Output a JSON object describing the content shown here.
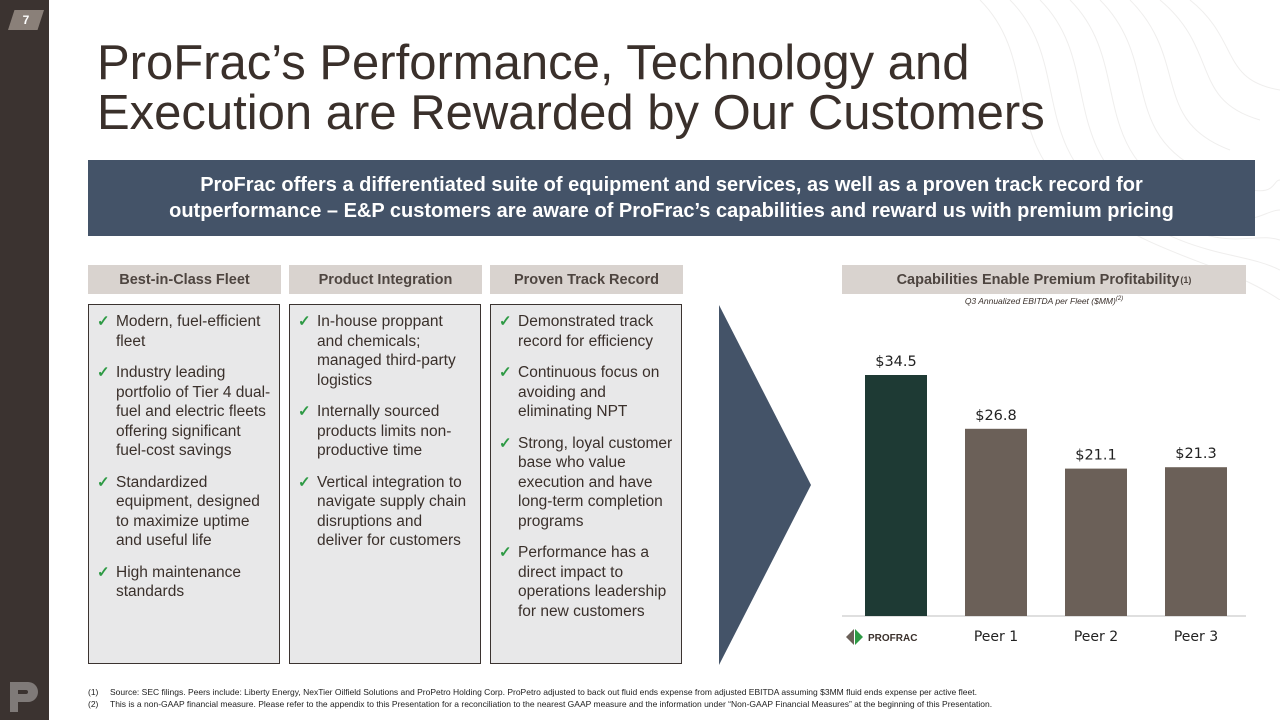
{
  "page_number": "7",
  "title_line1": "ProFrac’s Performance, Technology and",
  "title_line2": "Execution are Rewarded by Our Customers",
  "banner": {
    "line1": "ProFrac offers a differentiated suite of equipment and services, as well as a proven track record for",
    "line2": "outperformance – E&P customers are aware of ProFrac’s capabilities and reward us with premium pricing"
  },
  "columns": [
    {
      "header": "Best-in-Class Fleet",
      "items": [
        "Modern, fuel-efficient fleet",
        "Industry leading portfolio of Tier 4 dual-fuel and electric fleets offering significant fuel-cost savings",
        "Standardized equipment, designed to maximize uptime and useful life",
        "High maintenance standards"
      ]
    },
    {
      "header": "Product Integration",
      "items": [
        "In-house proppant and chemicals; managed third-party logistics",
        "Internally sourced products limits non-productive time",
        "Vertical integration to navigate supply chain disruptions and deliver for customers"
      ]
    },
    {
      "header": "Proven Track Record",
      "items": [
        "Demonstrated track record for efficiency",
        "Continuous focus on avoiding and eliminating NPT",
        "Strong, loyal customer base who value execution and have long-term completion programs",
        "Performance has a direct impact to operations leadership for new customers"
      ]
    }
  ],
  "chart_header": "Capabilities Enable Premium Profitability",
  "chart_header_sup": "(1)",
  "chart_subtitle": "Q3 Annualized EBITDA per Fleet ($MM)",
  "chart_subtitle_sup": "(2)",
  "logo_text": "PROFRAC",
  "chart_data": {
    "type": "bar",
    "categories": [
      "",
      "Peer 1",
      "Peer 2",
      "Peer 3"
    ],
    "values": [
      34.5,
      26.8,
      21.1,
      21.3
    ],
    "data_labels": [
      "$34.5",
      "$26.8",
      "$21.1",
      "$21.3"
    ],
    "colors": [
      "#1e3a34",
      "#6b6058",
      "#6b6058",
      "#6b6058"
    ],
    "ylim": [
      0,
      40
    ]
  },
  "footnotes": [
    {
      "num": "(1)",
      "text": "Source: SEC filings. Peers include: Liberty Energy, NexTier Oilfield Solutions and ProPetro Holding Corp. ProPetro adjusted to back out fluid ends expense from adjusted EBITDA assuming $3MM fluid ends expense per active fleet."
    },
    {
      "num": "(2)",
      "text": "This is a non-GAAP financial measure. Please refer to the appendix to this Presentation for a reconciliation to the nearest GAAP measure and the information under “Non-GAAP Financial Measures” at the beginning of this Presentation."
    }
  ]
}
